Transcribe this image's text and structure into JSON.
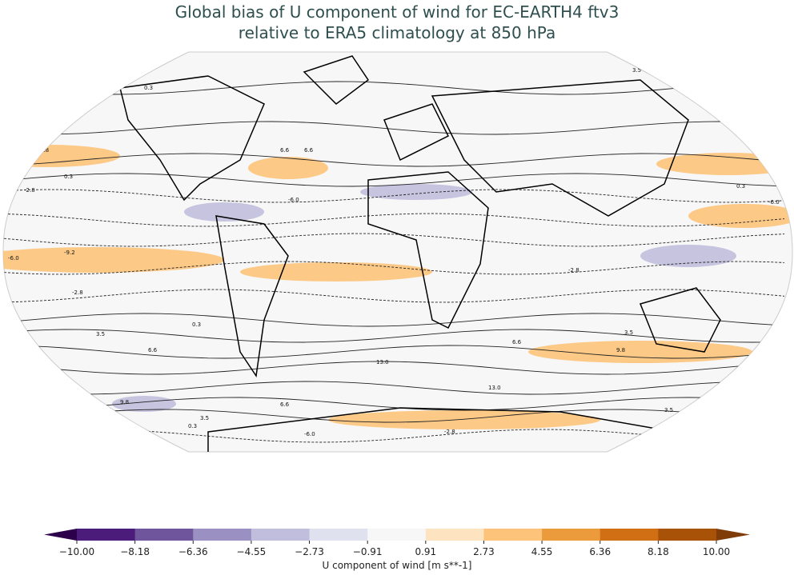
{
  "title_line1": "Global bias of U component of wind for EC-EARTH4 ftv3",
  "title_line2": "relative to ERA5 climatology at 850 hPa",
  "colorbar": {
    "label": "U component of wind [m s**-1]",
    "ticks": [
      "−10.00",
      "−8.18",
      "−6.36",
      "−4.55",
      "−2.73",
      "−0.91",
      "0.91",
      "2.73",
      "4.55",
      "6.36",
      "8.18",
      "10.00"
    ],
    "colors": [
      "#4b1c7a",
      "#6f559b",
      "#9a91c2",
      "#c0bedc",
      "#e0e1ee",
      "#f7f7f7",
      "#fde3c0",
      "#fdc37a",
      "#eb9a3c",
      "#d06f13",
      "#a85208"
    ],
    "under_color": "#2d004b",
    "over_color": "#7f3b08"
  },
  "map": {
    "projection": "Robinson",
    "ocean_fill": "#f7f7f7",
    "contour_labels": [
      "0.3",
      "3.5",
      "6.6",
      "9.8",
      "0.3",
      "-2.8",
      "-6.0",
      "-9.2",
      "-6.0",
      "-2.8",
      "0.3",
      "3.5",
      "6.6",
      "9.8",
      "13.0",
      "13.0",
      "9.8",
      "6.6",
      "3.5",
      "0.3",
      "-2.8",
      "-6.0",
      "3.5",
      "6.6",
      "9.8",
      "3.5",
      "0.3",
      "-6.0",
      "-2.8",
      "6.6",
      "0.3"
    ]
  }
}
